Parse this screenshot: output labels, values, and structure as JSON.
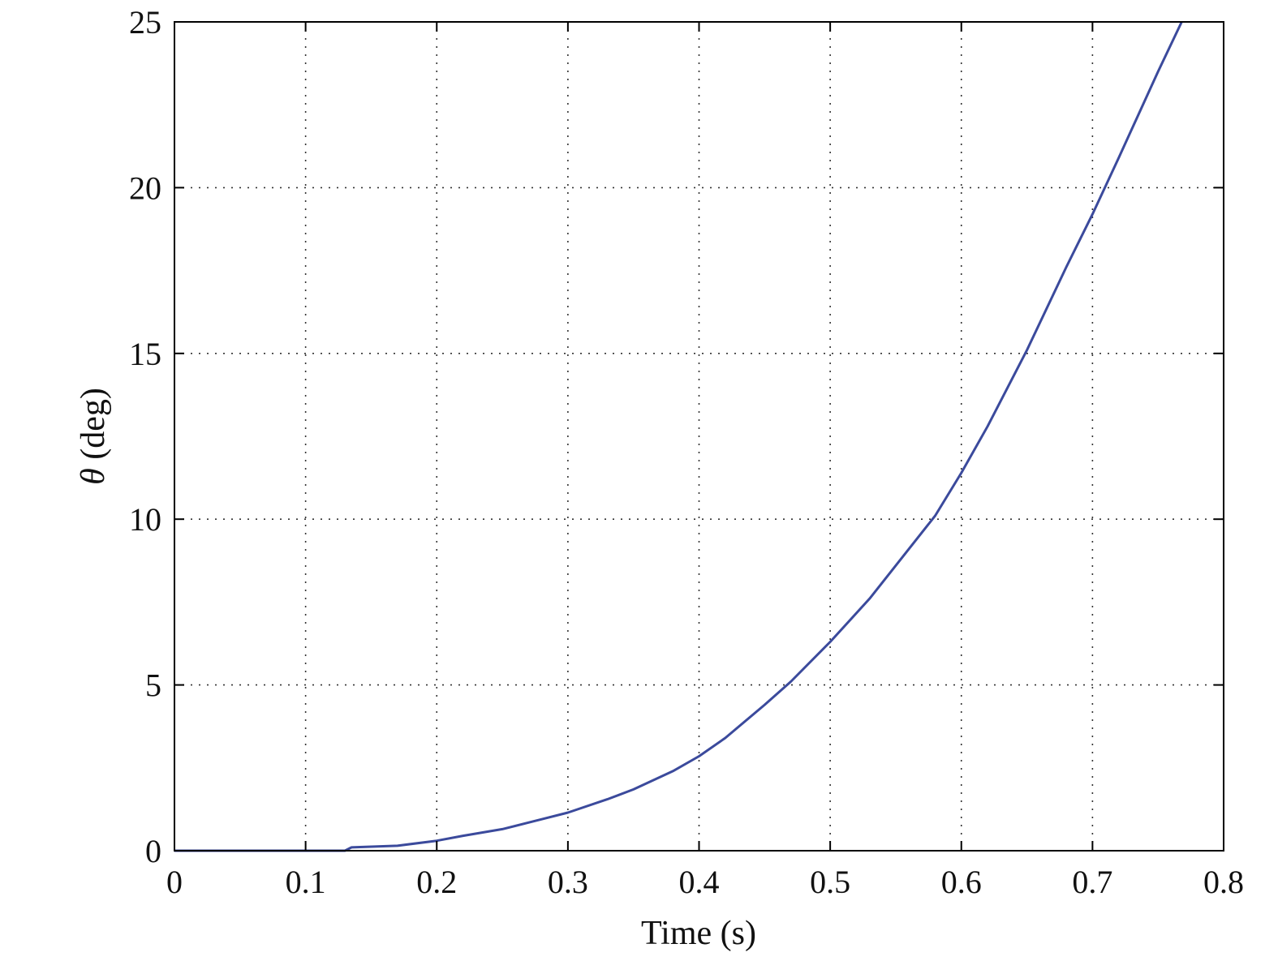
{
  "chart_data": {
    "type": "line",
    "title": "",
    "xlabel": "Time (s)",
    "ylabel_symbol": "θ",
    "ylabel_text": " (deg)",
    "xlim": [
      0,
      0.8
    ],
    "ylim": [
      0,
      25
    ],
    "xticks": [
      0,
      0.1,
      0.2,
      0.3,
      0.4,
      0.5,
      0.6,
      0.7,
      0.8
    ],
    "xtick_labels": [
      "0",
      "0.1",
      "0.2",
      "0.3",
      "0.4",
      "0.5",
      "0.6",
      "0.7",
      "0.8"
    ],
    "yticks": [
      0,
      5,
      10,
      15,
      20,
      25
    ],
    "ytick_labels": [
      "0",
      "5",
      "10",
      "15",
      "20",
      "25"
    ],
    "grid": true,
    "legend": "none",
    "series": [
      {
        "color": "#3b4a9c",
        "x": [
          0,
          0.13,
          0.135,
          0.17,
          0.2,
          0.22,
          0.25,
          0.28,
          0.3,
          0.33,
          0.35,
          0.38,
          0.4,
          0.42,
          0.45,
          0.47,
          0.5,
          0.53,
          0.55,
          0.58,
          0.6,
          0.62,
          0.65,
          0.68,
          0.7,
          0.72,
          0.75,
          0.768
        ],
        "y": [
          0,
          0,
          0.1,
          0.15,
          0.3,
          0.45,
          0.65,
          0.95,
          1.15,
          1.55,
          1.85,
          2.4,
          2.85,
          3.4,
          4.4,
          5.1,
          6.3,
          7.6,
          8.6,
          10.1,
          11.4,
          12.8,
          15.1,
          17.6,
          19.2,
          20.9,
          23.5,
          25
        ]
      }
    ]
  }
}
